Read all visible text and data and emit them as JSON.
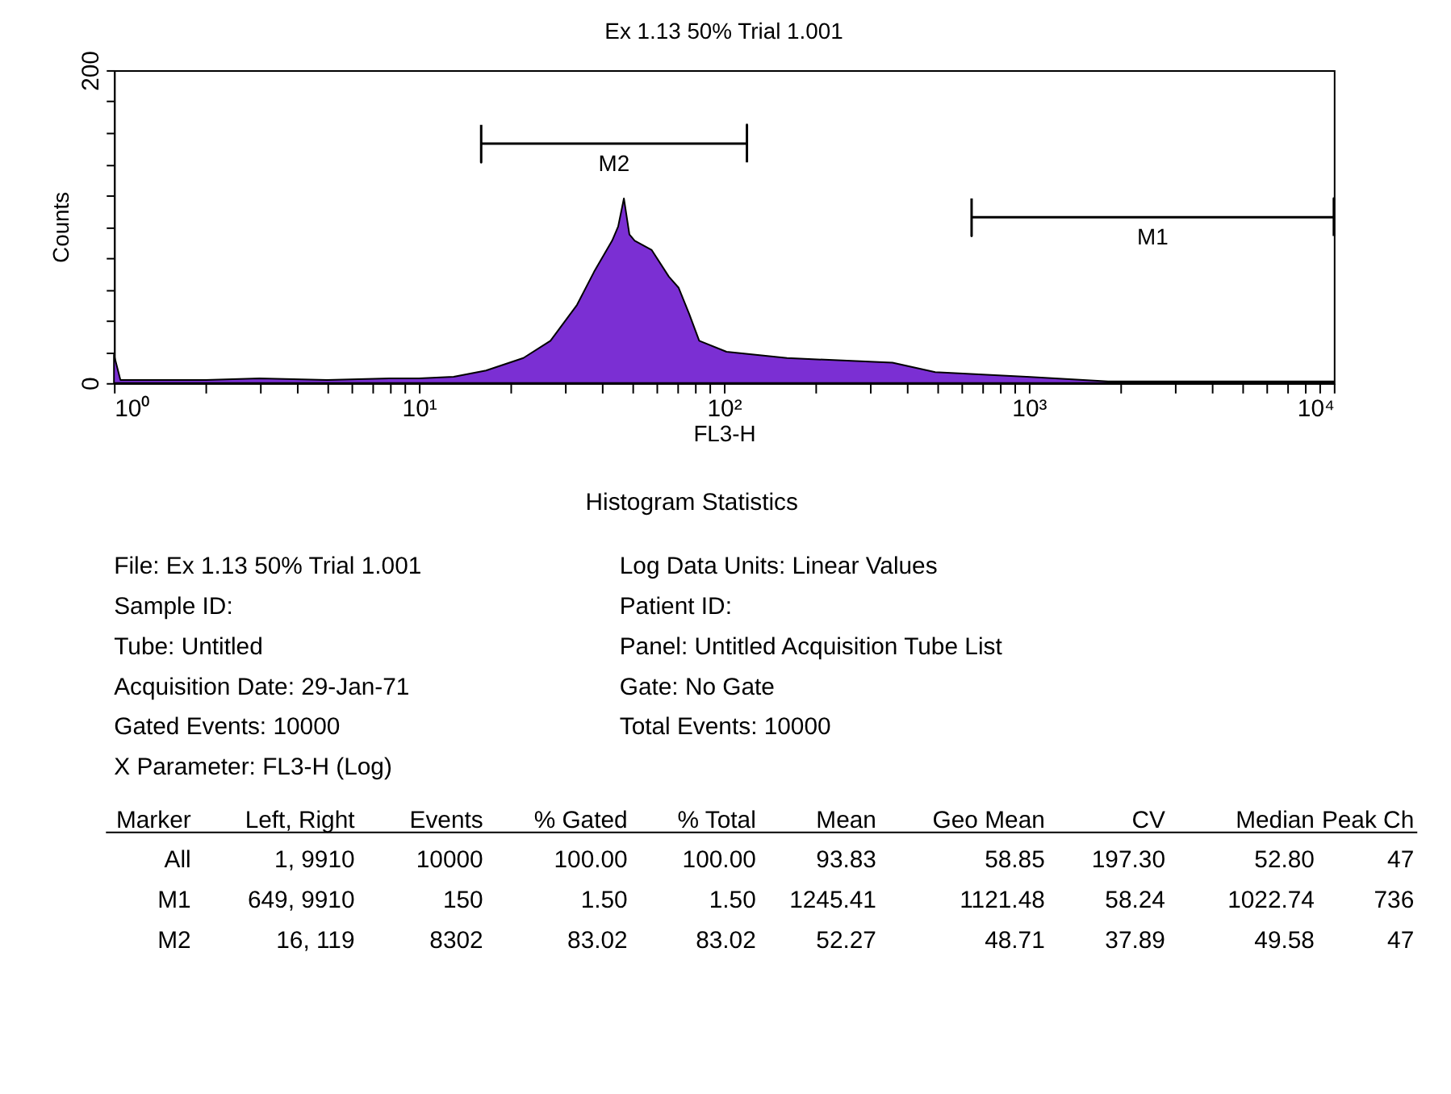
{
  "chart_data": {
    "type": "area",
    "title": "Ex 1.13 50% Trial 1.001",
    "xlabel": "FL3-H",
    "ylabel": "Counts",
    "log": "x",
    "grid": false,
    "xlim": [
      1,
      10000
    ],
    "ylim": [
      0,
      200
    ],
    "xticks": [
      {
        "value": 1,
        "label": "10⁰"
      },
      {
        "value": 2,
        "label": null
      },
      {
        "value": 3,
        "label": null
      },
      {
        "value": 4,
        "label": null
      },
      {
        "value": 5,
        "label": null
      },
      {
        "value": 6,
        "label": null
      },
      {
        "value": 7,
        "label": null
      },
      {
        "value": 8,
        "label": null
      },
      {
        "value": 9,
        "label": null
      },
      {
        "value": 10,
        "label": "10¹"
      },
      {
        "value": 20,
        "label": null
      },
      {
        "value": 30,
        "label": null
      },
      {
        "value": 40,
        "label": null
      },
      {
        "value": 50,
        "label": null
      },
      {
        "value": 60,
        "label": null
      },
      {
        "value": 70,
        "label": null
      },
      {
        "value": 80,
        "label": null
      },
      {
        "value": 90,
        "label": null
      },
      {
        "value": 100,
        "label": "10²"
      },
      {
        "value": 200,
        "label": null
      },
      {
        "value": 300,
        "label": null
      },
      {
        "value": 400,
        "label": null
      },
      {
        "value": 500,
        "label": null
      },
      {
        "value": 600,
        "label": null
      },
      {
        "value": 700,
        "label": null
      },
      {
        "value": 800,
        "label": null
      },
      {
        "value": 900,
        "label": null
      },
      {
        "value": 1000,
        "label": "10³"
      },
      {
        "value": 2000,
        "label": null
      },
      {
        "value": 3000,
        "label": null
      },
      {
        "value": 4000,
        "label": null
      },
      {
        "value": 5000,
        "label": null
      },
      {
        "value": 6000,
        "label": null
      },
      {
        "value": 7000,
        "label": null
      },
      {
        "value": 8000,
        "label": null
      },
      {
        "value": 9000,
        "label": null
      },
      {
        "value": 10000,
        "label": "10⁴"
      }
    ],
    "yticks": [
      0,
      {
        "value": 20,
        "label": null
      },
      {
        "value": 40,
        "label": null
      },
      {
        "value": 60,
        "label": null
      },
      {
        "value": 80,
        "label": null
      },
      {
        "value": 100,
        "label": null
      },
      {
        "value": 120,
        "label": null
      },
      {
        "value": 140,
        "label": null
      },
      {
        "value": 160,
        "label": null
      },
      {
        "value": 180,
        "label": null
      },
      200
    ],
    "series": [
      {
        "color": "#7b2fd3",
        "x": [
          1,
          1.05,
          2,
          3,
          5,
          8,
          10,
          13,
          16.6,
          22,
          27,
          33,
          37.5,
          43,
          45,
          47,
          49,
          51,
          58,
          66,
          71,
          77,
          83,
          102,
          161,
          357,
          493,
          985,
          1820,
          10000
        ],
        "values": [
          18,
          2,
          2,
          3,
          2,
          3,
          3,
          4,
          8,
          16,
          27,
          50,
          71,
          91,
          100,
          118,
          95,
          91,
          85,
          68,
          61,
          44,
          27,
          20,
          16,
          13,
          7,
          4,
          1,
          1
        ]
      },
      {
        "type": "line",
        "name": "M2",
        "color": "#000000",
        "x": [
          16,
          16,
          16,
          119,
          119,
          119
        ],
        "values": [
          165,
          141,
          153,
          153,
          165,
          141
        ]
      },
      {
        "type": "line",
        "name": "M1",
        "color": "#000000",
        "x": [
          649,
          649,
          649,
          10000,
          10000,
          10000
        ],
        "values": [
          118,
          94,
          106,
          106,
          118,
          94
        ]
      }
    ],
    "annotations": [
      "Histogram Statistics",
      "File: Ex 1.13 50% Trial 1.001\tLog Data Units: Linear Values",
      "Sample ID:\tPatient ID:",
      "Tube: Untitled\tPanel: Untitled Acquisition Tube List",
      "Acquisition Date: 29-Jan-71\tGate: No Gate",
      "Gated Events: 10000\tTotal Events: 10000",
      "X Parameter: FL3-H (Log)",
      "Marker\tLeft, Right\tEvents\t% Gated\t% Total\tMean\tGeo Mean\tCV\tMedian\tPeak Ch",
      "All\t1,  9910\t10000\t100.00\t100.00\t93.83\t58.85\t197.30\t52.80\t47",
      "M1\t649,  9910\t150\t1.50\t1.50\t1245.41\t1121.48\t58.24\t1022.74\t736",
      "M2\t16,   119\t8302\t83.02\t83.02\t52.27\t48.71\t37.89\t49.58\t47"
    ]
  }
}
